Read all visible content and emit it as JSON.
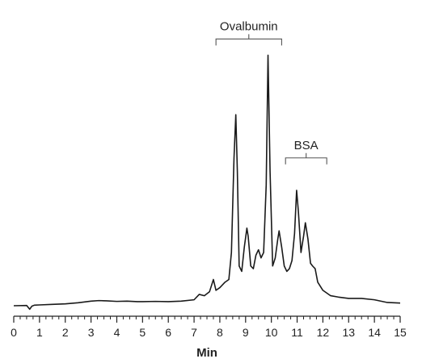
{
  "chart_data": {
    "type": "line",
    "title": "",
    "xlabel": "Min",
    "ylabel": "",
    "xlim": [
      0,
      15
    ],
    "ylim": [
      0,
      100
    ],
    "grid": false,
    "x_ticks": [
      "0",
      "1",
      "2",
      "3",
      "4",
      "5",
      "6",
      "7",
      "8",
      "9",
      "10",
      "11",
      "12",
      "13",
      "14",
      "15"
    ],
    "series": [
      {
        "name": "",
        "x": [
          0,
          0.5,
          0.62,
          0.7,
          0.8,
          1.0,
          1.5,
          2.0,
          2.5,
          3.0,
          3.3,
          3.6,
          4.0,
          4.4,
          4.8,
          5.0,
          5.5,
          6.0,
          6.5,
          7.0,
          7.2,
          7.4,
          7.6,
          7.75,
          7.85,
          8.0,
          8.2,
          8.35,
          8.45,
          8.55,
          8.62,
          8.68,
          8.75,
          8.85,
          8.95,
          9.05,
          9.1,
          9.2,
          9.3,
          9.4,
          9.5,
          9.6,
          9.7,
          9.8,
          9.87,
          9.95,
          10.05,
          10.15,
          10.25,
          10.3,
          10.4,
          10.5,
          10.6,
          10.7,
          10.8,
          10.9,
          10.98,
          11.05,
          11.15,
          11.25,
          11.32,
          11.42,
          11.52,
          11.6,
          11.7,
          11.8,
          12.0,
          12.3,
          12.6,
          13.0,
          13.5,
          14.0,
          14.5,
          15.0
        ],
        "y": [
          0.3,
          0.4,
          -1.0,
          0.1,
          0.5,
          0.6,
          0.8,
          1.0,
          1.4,
          2.0,
          2.2,
          2.1,
          1.9,
          2.0,
          1.8,
          1.8,
          1.9,
          1.8,
          2.0,
          2.5,
          4.5,
          4.0,
          5.5,
          10.0,
          6.0,
          7.0,
          9.0,
          10.0,
          20.0,
          55.0,
          71.0,
          50.0,
          15.0,
          13.0,
          22.0,
          29.0,
          26.0,
          15.0,
          14.0,
          19.0,
          21.0,
          18.0,
          20.0,
          45.0,
          93.0,
          50.0,
          15.0,
          18.0,
          25.0,
          28.0,
          22.0,
          15.0,
          13.0,
          14.0,
          17.0,
          27.0,
          43.0,
          35.0,
          20.0,
          26.0,
          31.0,
          25.0,
          16.0,
          15.0,
          14.0,
          9.0,
          6.0,
          4.0,
          3.5,
          3.0,
          3.0,
          2.5,
          1.5,
          1.3
        ]
      }
    ],
    "annotations": [
      {
        "label": "Ovalbumin",
        "x_start": 7.85,
        "x_end": 10.4,
        "y": 99
      },
      {
        "label": "BSA",
        "x_start": 10.55,
        "x_end": 12.15,
        "y": 55
      }
    ]
  }
}
